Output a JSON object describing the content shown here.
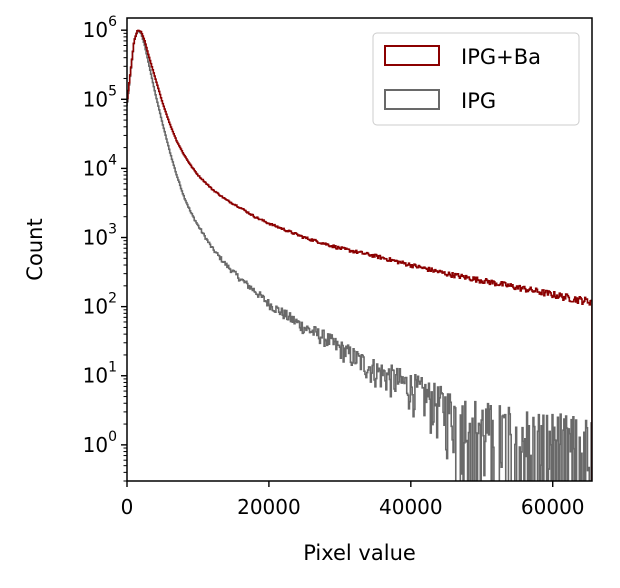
{
  "chart_data": {
    "type": "line",
    "xlabel": "Pixel value",
    "ylabel": "Count",
    "xlim": [
      0,
      65535
    ],
    "ylim": [
      0.3,
      1500000
    ],
    "yscale": "log",
    "xticks": [
      0,
      20000,
      40000,
      60000
    ],
    "xtick_labels": [
      "0",
      "20000",
      "40000",
      "60000"
    ],
    "yticks": [
      1,
      10,
      100,
      1000,
      10000,
      100000,
      1000000
    ],
    "ytick_labels": [
      {
        "base": "10",
        "exp": "0"
      },
      {
        "base": "10",
        "exp": "1"
      },
      {
        "base": "10",
        "exp": "2"
      },
      {
        "base": "10",
        "exp": "3"
      },
      {
        "base": "10",
        "exp": "4"
      },
      {
        "base": "10",
        "exp": "5"
      },
      {
        "base": "10",
        "exp": "6"
      }
    ],
    "grid": false,
    "legend_position": "top-right",
    "series": [
      {
        "name": "IPG+Ba",
        "color": "#8b0000",
        "x": [
          0,
          500,
          1000,
          1500,
          2000,
          2500,
          3000,
          4000,
          5000,
          6000,
          7000,
          8000,
          9000,
          10000,
          12000,
          14000,
          16000,
          18000,
          20000,
          25000,
          30000,
          35000,
          40000,
          45000,
          50000,
          55000,
          60000,
          63000,
          65000
        ],
        "y": [
          90000,
          250000,
          700000,
          1000000,
          950000,
          700000,
          450000,
          200000,
          90000,
          45000,
          25000,
          16000,
          11000,
          8000,
          5000,
          3500,
          2700,
          2000,
          1600,
          1000,
          700,
          540,
          400,
          300,
          240,
          190,
          150,
          130,
          120
        ]
      },
      {
        "name": "IPG",
        "color": "#696969",
        "x": [
          0,
          500,
          1000,
          1500,
          2000,
          2500,
          3000,
          4000,
          5000,
          6000,
          7000,
          8000,
          9000,
          10000,
          12000,
          14000,
          16000,
          18000,
          20000,
          22000,
          25000,
          28000,
          30000,
          35000,
          40000,
          45000,
          50000,
          55000,
          60000,
          63000,
          65000
        ],
        "y": [
          80000,
          240000,
          700000,
          1000000,
          900000,
          600000,
          350000,
          120000,
          45000,
          18000,
          8000,
          4000,
          2300,
          1500,
          700,
          400,
          250,
          170,
          110,
          80,
          50,
          35,
          25,
          12,
          7,
          3.5,
          2,
          1.5,
          1.2,
          1,
          0.9
        ]
      }
    ]
  }
}
